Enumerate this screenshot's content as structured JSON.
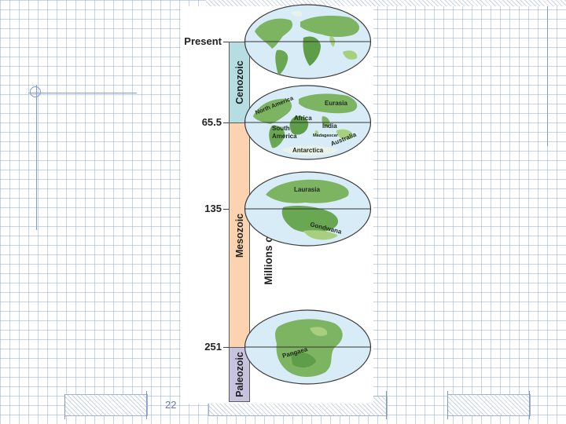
{
  "slide": {
    "number": "22"
  },
  "figure": {
    "axis_label": "Millions of years ago",
    "ticks": [
      "Present",
      "65.5",
      "135",
      "251"
    ],
    "eras": [
      {
        "name": "Cenozoic",
        "color": "#b6dde2"
      },
      {
        "name": "Mesozoic",
        "color": "#fcd3b0"
      },
      {
        "name": "Paleozoic",
        "color": "#c7c2de"
      }
    ],
    "maps": {
      "m655": {
        "north_america": "North America",
        "eurasia": "Eurasia",
        "africa": "Africa",
        "india": "India",
        "south_america_1": "South",
        "south_america_2": "America",
        "madagascar": "Madagascar",
        "australia": "Australia",
        "antarctica": "Antarctica"
      },
      "m135": {
        "laurasia": "Laurasia",
        "gondwana": "Gondwana"
      },
      "m251": {
        "pangaea": "Pangaea"
      }
    },
    "colors": {
      "ocean": "#d8ecf7",
      "land": "#7cb462",
      "land_dark": "#4f8f3e",
      "land_light": "#a8cf7e"
    }
  }
}
